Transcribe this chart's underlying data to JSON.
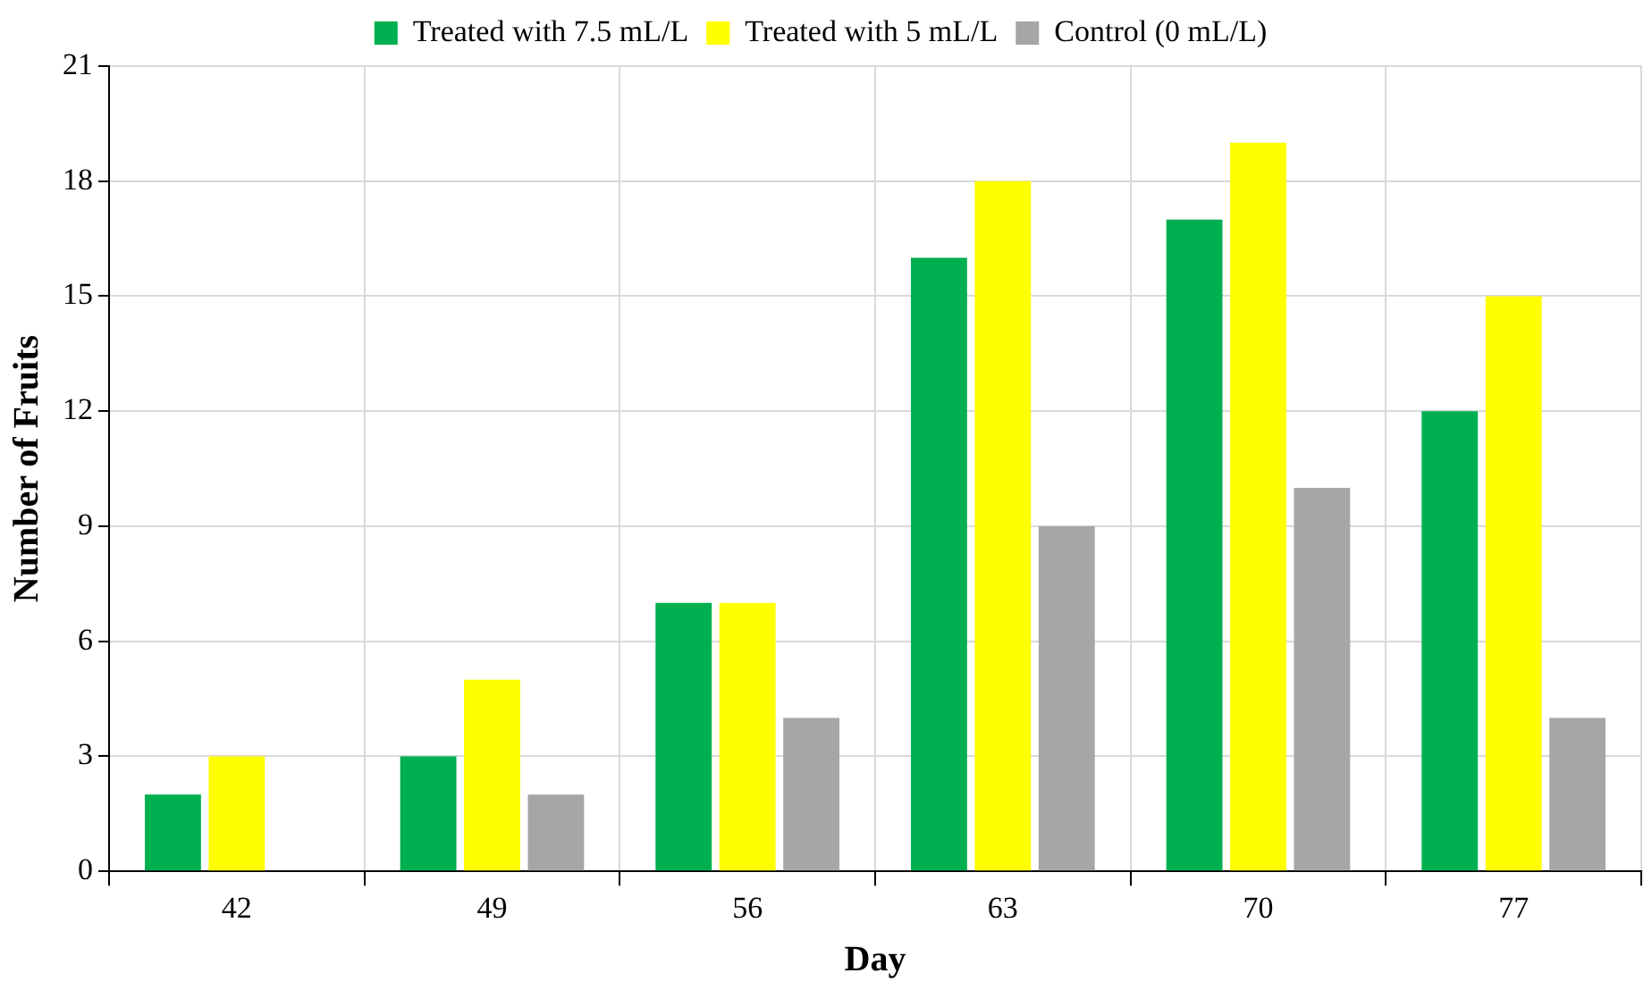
{
  "chart_data": {
    "type": "bar",
    "xlabel": "Day",
    "ylabel": "Number of Fruits",
    "categories": [
      "42",
      "49",
      "56",
      "63",
      "70",
      "77"
    ],
    "series": [
      {
        "name": "Treated with 7.5 mL/L",
        "color": "#00b050",
        "values": [
          2,
          3,
          7,
          16,
          17,
          12
        ]
      },
      {
        "name": "Treated with 5 mL/L",
        "color": "#ffff00",
        "values": [
          3,
          5,
          7,
          18,
          19,
          15
        ]
      },
      {
        "name": "Control (0 mL/L)",
        "color": "#a6a6a6",
        "values": [
          0,
          2,
          4,
          9,
          10,
          4
        ]
      }
    ],
    "ylim": [
      0,
      21
    ],
    "yticks": [
      0,
      3,
      6,
      9,
      12,
      15,
      18,
      21
    ],
    "grid": true,
    "legend": "top"
  }
}
